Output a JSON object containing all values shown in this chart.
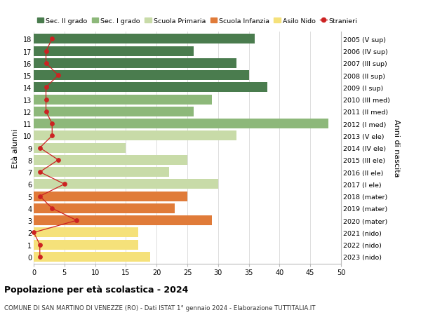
{
  "ages": [
    0,
    1,
    2,
    3,
    4,
    5,
    6,
    7,
    8,
    9,
    10,
    11,
    12,
    13,
    14,
    15,
    16,
    17,
    18
  ],
  "years": [
    "2023 (nido)",
    "2022 (nido)",
    "2021 (nido)",
    "2020 (mater)",
    "2019 (mater)",
    "2018 (mater)",
    "2017 (I ele)",
    "2016 (II ele)",
    "2015 (III ele)",
    "2014 (IV ele)",
    "2013 (V ele)",
    "2012 (I med)",
    "2011 (II med)",
    "2010 (III med)",
    "2009 (I sup)",
    "2008 (II sup)",
    "2007 (III sup)",
    "2006 (IV sup)",
    "2005 (V sup)"
  ],
  "bar_values": [
    19,
    17,
    17,
    29,
    23,
    25,
    30,
    22,
    25,
    15,
    33,
    48,
    26,
    29,
    38,
    35,
    33,
    26,
    36
  ],
  "stranieri": [
    1,
    1,
    0,
    7,
    3,
    1,
    5,
    1,
    4,
    1,
    3,
    3,
    2,
    2,
    2,
    4,
    2,
    2,
    3
  ],
  "bar_colors": [
    "#f5e17a",
    "#f5e17a",
    "#f5e17a",
    "#e07b39",
    "#e07b39",
    "#e07b39",
    "#c8dba8",
    "#c8dba8",
    "#c8dba8",
    "#c8dba8",
    "#c8dba8",
    "#8db87a",
    "#8db87a",
    "#8db87a",
    "#4a7c4e",
    "#4a7c4e",
    "#4a7c4e",
    "#4a7c4e",
    "#4a7c4e"
  ],
  "legend_labels": [
    "Sec. II grado",
    "Sec. I grado",
    "Scuola Primaria",
    "Scuola Infanzia",
    "Asilo Nido",
    "Stranieri"
  ],
  "legend_colors": [
    "#4a7c4e",
    "#8db87a",
    "#c8dba8",
    "#e07b39",
    "#f5e17a",
    "#cc2222"
  ],
  "ylabel": "Età alunni",
  "ylabel_right": "Anni di nascita",
  "title": "Popolazione per età scolastica - 2024",
  "subtitle": "COMUNE DI SAN MARTINO DI VENEZZE (RO) - Dati ISTAT 1° gennaio 2024 - Elaborazione TUTTITALIA.IT",
  "xlim": [
    0,
    50
  ],
  "stranieri_color": "#cc2222",
  "grid_color": "#dddddd",
  "bg_color": "#ffffff"
}
